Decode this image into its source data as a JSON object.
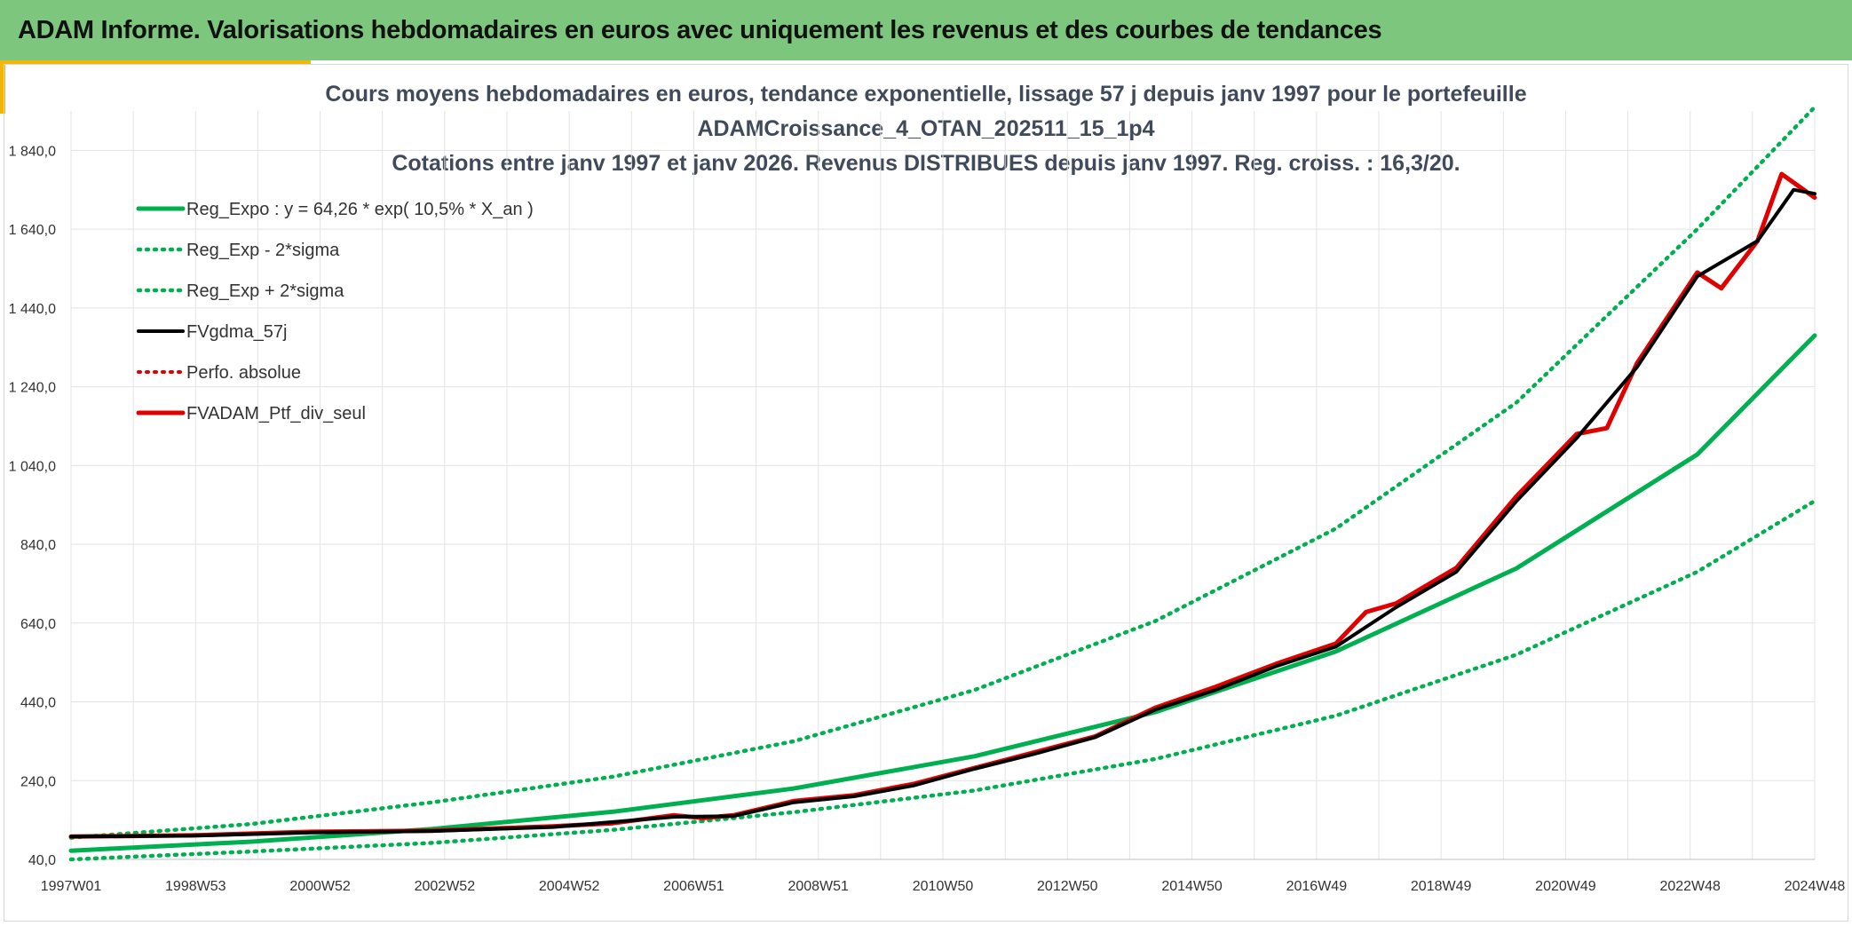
{
  "header": {
    "title": "ADAM Informe. Valorisations hebdomadaires en euros avec uniquement les revenus et des courbes de tendances"
  },
  "colors": {
    "header_bg": "#7dc67d",
    "accent": "#f2b705",
    "reg_green": "#00b050",
    "black": "#000000",
    "red": "#e00000"
  },
  "chart_data": {
    "type": "line",
    "title_lines": [
      "Cours moyens hebdomadaires en euros, tendance exponentielle, lissage 57 j depuis janv 1997 pour le portefeuille",
      "ADAMCroissance_4_OTAN_202511_15_1p4",
      "Cotations entre janv 1997 et janv 2026. Revenus DISTRIBUES depuis janv 1997. Reg. croiss. : 16,3/20."
    ],
    "x_tick_labels": [
      "1997W01",
      "1998W53",
      "2000W52",
      "2002W52",
      "2004W52",
      "2006W51",
      "2008W51",
      "2010W50",
      "2012W50",
      "2014W50",
      "2016W49",
      "2018W49",
      "2020W49",
      "2022W48",
      "2024W48"
    ],
    "xlim": [
      1997.0,
      2025.95
    ],
    "ylim": [
      40,
      1940
    ],
    "y_ticks": [
      40,
      240,
      440,
      640,
      840,
      1040,
      1240,
      1440,
      1640,
      1840
    ],
    "y_tick_labels": [
      "40,0",
      "240,0",
      "440,0",
      "640,0",
      "840,0",
      "1 040,0",
      "1 240,0",
      "1 440,0",
      "1 640,0",
      "1 840,0"
    ],
    "grid": true,
    "legend_position": "top-left",
    "series": [
      {
        "name": "Reg_Expo : y = 64,26 * exp( 10,5% *  X_an )",
        "style": "solid-green",
        "x": [
          1997,
          2000,
          2003,
          2006,
          2009,
          2012,
          2015,
          2018,
          2021,
          2024,
          2025.95
        ],
        "y": [
          62,
          85,
          117,
          161,
          220,
          302,
          414,
          568,
          779,
          1068,
          1370
        ]
      },
      {
        "name": "Reg_Exp - 2*sigma",
        "style": "dotted-green",
        "x": [
          1997,
          2000,
          2003,
          2006,
          2009,
          2012,
          2015,
          2018,
          2021,
          2024,
          2025.95
        ],
        "y": [
          40,
          60,
          82,
          115,
          160,
          215,
          295,
          405,
          560,
          770,
          950
        ]
      },
      {
        "name": "Reg_Exp + 2*sigma",
        "style": "dotted-green",
        "x": [
          1997,
          2000,
          2003,
          2006,
          2009,
          2012,
          2015,
          2018,
          2021,
          2024,
          2025.95
        ],
        "y": [
          95,
          130,
          185,
          250,
          340,
          470,
          645,
          880,
          1200,
          1640,
          1950
        ]
      },
      {
        "name": "FVgdma_57j",
        "style": "solid-black",
        "x": [
          1997,
          1999,
          2001,
          2003,
          2005,
          2007,
          2008,
          2009,
          2010,
          2011,
          2012,
          2013,
          2014,
          2015,
          2016,
          2017,
          2018,
          2019,
          2020,
          2021,
          2022,
          2023,
          2024,
          2025,
          2025.6,
          2025.95
        ],
        "y": [
          98,
          100,
          108,
          112,
          122,
          148,
          150,
          185,
          200,
          228,
          270,
          308,
          350,
          420,
          470,
          530,
          580,
          680,
          770,
          950,
          1110,
          1290,
          1520,
          1610,
          1740,
          1730
        ]
      },
      {
        "name": "Perfo. absolue",
        "style": "dotted-red",
        "x": [],
        "y": []
      },
      {
        "name": "FVADAM_Ptf_div_seul",
        "style": "solid-red",
        "x": [
          1997,
          1999,
          2001,
          2003,
          2005,
          2006,
          2007,
          2007.5,
          2008,
          2009,
          2010,
          2011,
          2012,
          2013,
          2014,
          2015,
          2016,
          2017,
          2018,
          2018.5,
          2019,
          2020,
          2021,
          2022,
          2022.5,
          2023,
          2024,
          2024.4,
          2025,
          2025.4,
          2025.95
        ],
        "y": [
          98,
          101,
          110,
          113,
          124,
          132,
          152,
          145,
          152,
          188,
          203,
          232,
          272,
          312,
          352,
          425,
          478,
          536,
          588,
          668,
          690,
          780,
          962,
          1120,
          1135,
          1300,
          1530,
          1490,
          1610,
          1780,
          1720
        ]
      }
    ]
  }
}
